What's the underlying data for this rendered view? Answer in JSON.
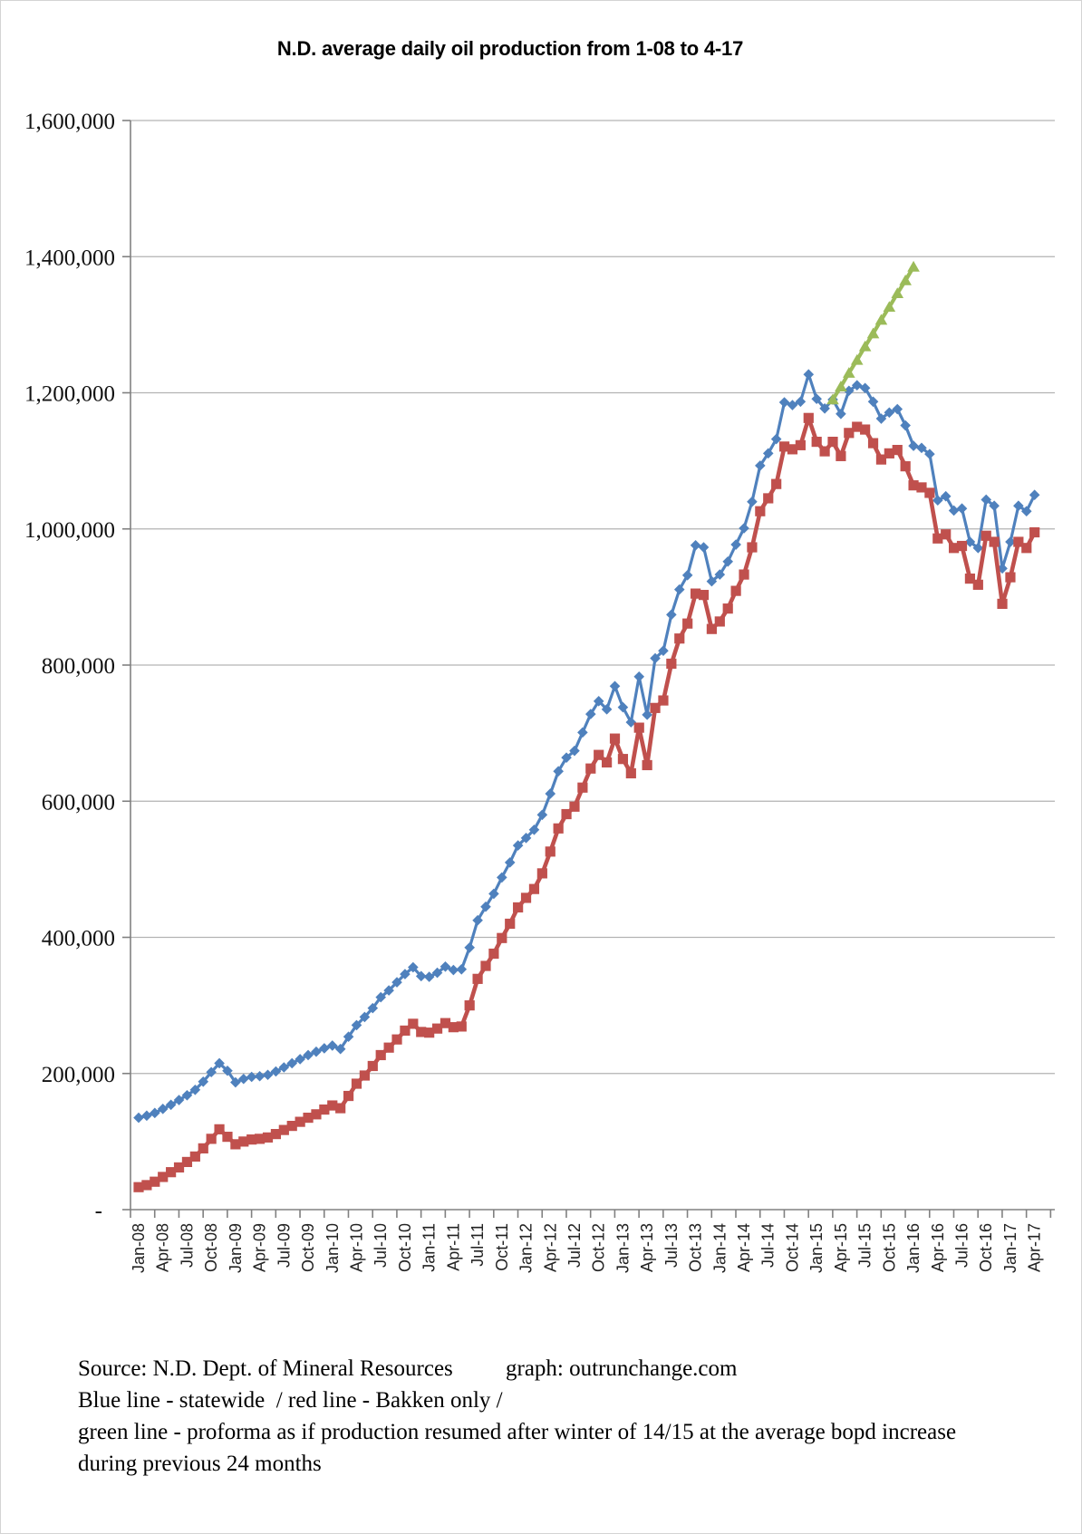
{
  "chart": {
    "title": "N.D. average daily oil production from 1-08 to 4-17",
    "y_axis": {
      "tick_labels": [
        "1,600,000",
        "1,400,000",
        "1,200,000",
        "1,000,000",
        "800,000",
        "600,000",
        "400,000",
        "200,000",
        "-"
      ],
      "min": 0,
      "max": 1600000,
      "step": 200000
    },
    "x_axis": {
      "labels": [
        "Jan-08",
        "Apr-08",
        "Jul-08",
        "Oct-08",
        "Jan-09",
        "Apr-09",
        "Jul-09",
        "Oct-09",
        "Jan-10",
        "Apr-10",
        "Jul-10",
        "Oct-10",
        "Jan-11",
        "Apr-11",
        "Jul-11",
        "Oct-11",
        "Jan-12",
        "Apr-12",
        "Jul-12",
        "Oct-12",
        "Jan-13",
        "Apr-13",
        "Jul-13",
        "Oct-13",
        "Jan-14",
        "Apr-14",
        "Jul-14",
        "Oct-14",
        "Jan-15",
        "Apr-15",
        "Jul-15",
        "Oct-15",
        "Jan-16",
        "Apr-16",
        "Jul-16",
        "Oct-16",
        "Jan-17",
        "Apr-17"
      ]
    },
    "colors": {
      "statewide": "#4F81BD",
      "bakken": "#C0504D",
      "proforma": "#9BBB59",
      "gridline": "#b3b3b3",
      "axis": "#808080"
    }
  },
  "chart_data": {
    "type": "line",
    "title": "N.D. average daily oil production from 1-08 to 4-17",
    "xlabel": "",
    "ylabel": "",
    "x_start": "Jan-08",
    "x_end": "Apr-17",
    "x_frequency": "monthly",
    "ylim": [
      0,
      1600000
    ],
    "grid": "horizontal",
    "legend_position": "none",
    "series": [
      {
        "name": "statewide",
        "color": "#4F81BD",
        "marker": "diamond",
        "start_index": 0,
        "values": [
          135000,
          138000,
          142000,
          148000,
          154000,
          161000,
          168000,
          176000,
          188000,
          202000,
          215000,
          204000,
          187000,
          192000,
          195000,
          196000,
          198000,
          203000,
          209000,
          215000,
          221000,
          227000,
          232000,
          237000,
          241000,
          236000,
          254000,
          271000,
          283000,
          296000,
          312000,
          322000,
          334000,
          346000,
          356000,
          343000,
          342000,
          348000,
          357000,
          352000,
          353000,
          385000,
          425000,
          445000,
          464000,
          488000,
          510000,
          535000,
          546000,
          558000,
          580000,
          611000,
          644000,
          664000,
          674000,
          701000,
          728000,
          747000,
          735000,
          769000,
          738000,
          716000,
          783000,
          727000,
          810000,
          821000,
          874000,
          911000,
          932000,
          976000,
          973000,
          923000,
          933000,
          952000,
          977000,
          1001000,
          1040000,
          1093000,
          1111000,
          1132000,
          1186000,
          1182000,
          1187000,
          1227000,
          1191000,
          1177000,
          1190000,
          1169000,
          1203000,
          1211000,
          1207000,
          1187000,
          1162000,
          1171000,
          1176000,
          1152000,
          1122000,
          1119000,
          1110000,
          1042000,
          1048000,
          1027000,
          1030000,
          981000,
          972000,
          1043000,
          1034000,
          942000,
          981000,
          1034000,
          1026000,
          1050000
        ]
      },
      {
        "name": "Bakken only",
        "color": "#C0504D",
        "marker": "square",
        "start_index": 0,
        "values": [
          33000,
          36000,
          41000,
          48000,
          55000,
          62000,
          70000,
          78000,
          90000,
          104000,
          118000,
          107000,
          96000,
          100000,
          103000,
          104000,
          106000,
          111000,
          117000,
          123000,
          129000,
          135000,
          140000,
          147000,
          153000,
          149000,
          167000,
          185000,
          197000,
          211000,
          227000,
          238000,
          250000,
          263000,
          273000,
          261000,
          260000,
          266000,
          274000,
          268000,
          269000,
          300000,
          339000,
          358000,
          376000,
          399000,
          420000,
          444000,
          458000,
          471000,
          494000,
          526000,
          560000,
          581000,
          592000,
          620000,
          648000,
          668000,
          657000,
          692000,
          662000,
          641000,
          708000,
          653000,
          737000,
          748000,
          802000,
          839000,
          861000,
          905000,
          903000,
          853000,
          864000,
          883000,
          909000,
          933000,
          973000,
          1026000,
          1045000,
          1066000,
          1121000,
          1117000,
          1123000,
          1163000,
          1128000,
          1114000,
          1128000,
          1107000,
          1141000,
          1150000,
          1146000,
          1126000,
          1102000,
          1111000,
          1116000,
          1092000,
          1064000,
          1061000,
          1053000,
          986000,
          992000,
          972000,
          975000,
          927000,
          918000,
          990000,
          981000,
          890000,
          929000,
          981000,
          972000,
          995000
        ]
      },
      {
        "name": "proforma as if production resumed after winter of 14/15 at the average bopd increase during previous 24 months",
        "color": "#9BBB59",
        "marker": "triangle",
        "start_index": 86,
        "values": [
          1190000,
          1209000,
          1229000,
          1248000,
          1268000,
          1287000,
          1307000,
          1326000,
          1346000,
          1365000,
          1385000
        ]
      }
    ]
  },
  "footer": {
    "source_label": "Source: N.D. Dept. of Mineral Resources",
    "credit_label": "graph: outrunchange.com",
    "legend_line": "Blue line - statewide  / red line - Bakken only /",
    "proforma_line_1": "green line - proforma as if production resumed after winter of 14/15 at the average bopd increase",
    "proforma_line_2": "during previous 24 months"
  }
}
